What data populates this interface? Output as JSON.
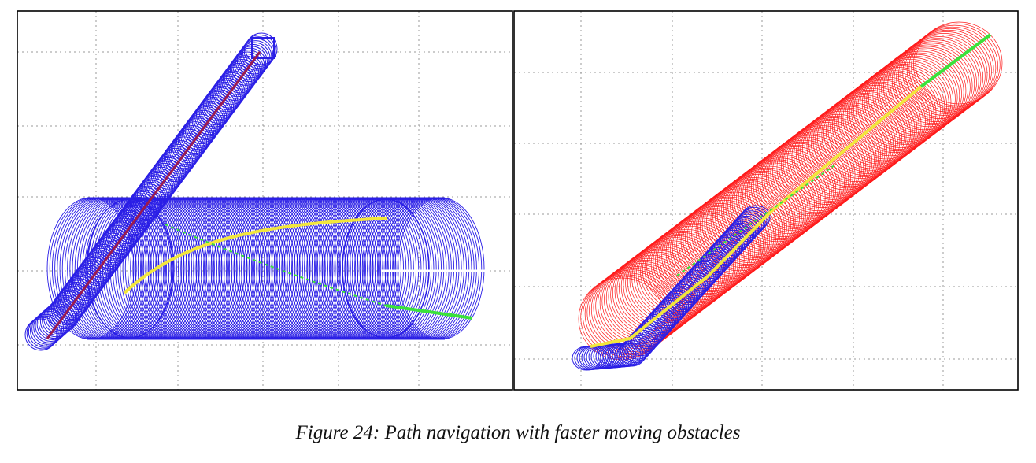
{
  "caption": "Figure 24: Path navigation with faster moving obstacles",
  "colors": {
    "obstacle_blue": "#2a1ee6",
    "obstacle_red": "#ff1a1a",
    "path_yellow": "#f2e63c",
    "path_green": "#39e23a",
    "path_white": "#ffffff",
    "path_dark_red": "#9b1b4f",
    "grid": "#9a9a9a"
  },
  "panels": [
    {
      "name": "left-simulation-panel"
    },
    {
      "name": "right-simulation-panel"
    }
  ]
}
